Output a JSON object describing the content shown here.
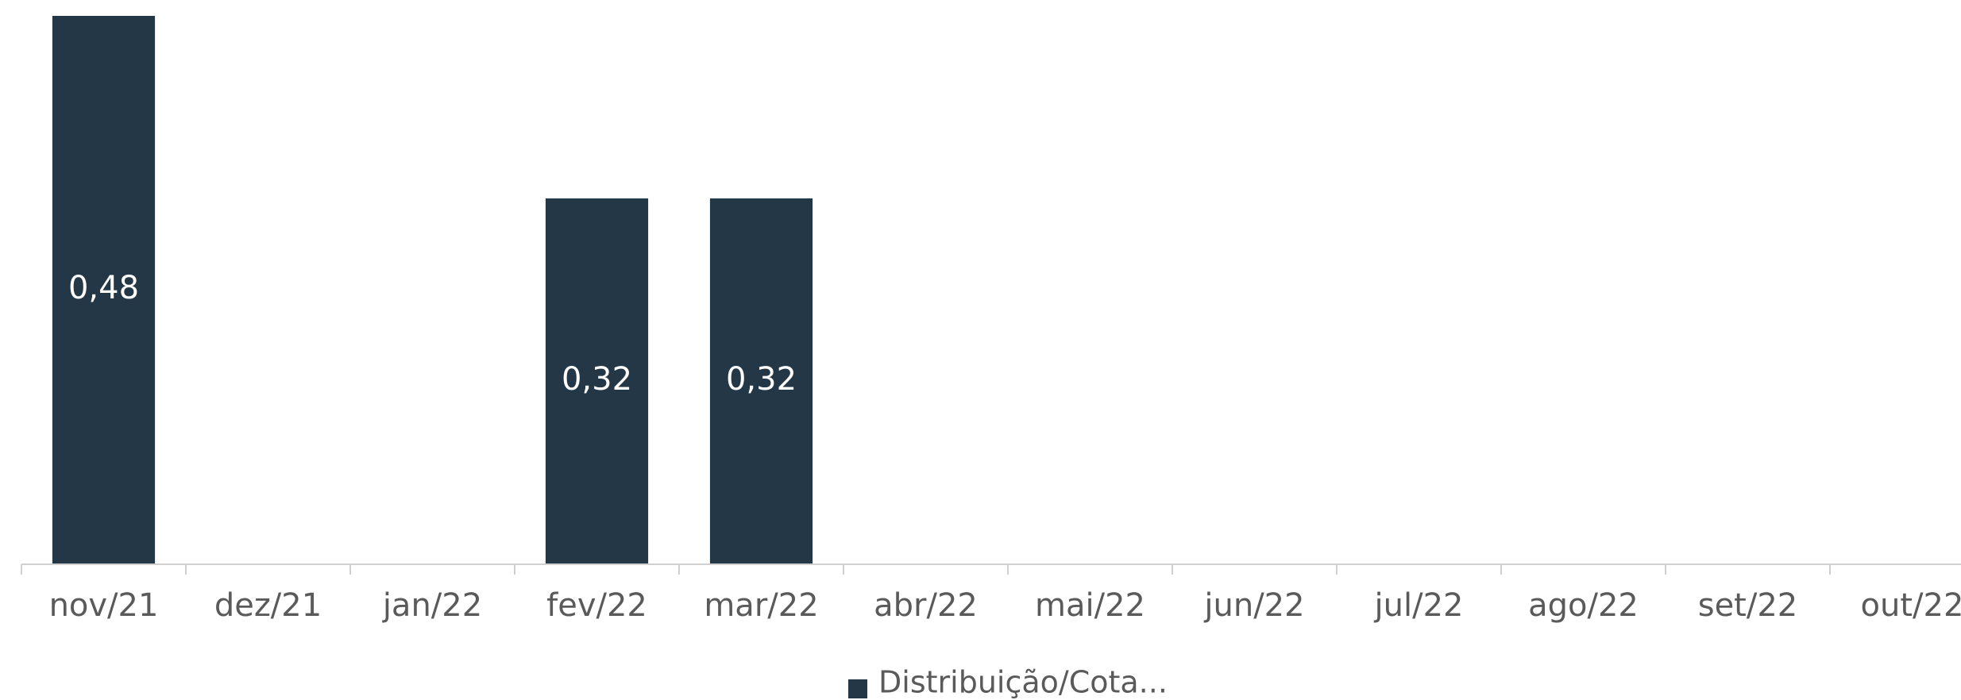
{
  "chart_data": {
    "type": "bar",
    "categories": [
      "nov/21",
      "dez/21",
      "jan/22",
      "fev/22",
      "mar/22",
      "abr/22",
      "mai/22",
      "jun/22",
      "jul/22",
      "ago/22",
      "set/22",
      "out/22"
    ],
    "series": [
      {
        "name": "Distribuição/Cota...",
        "color": "#243746",
        "values": [
          0.48,
          null,
          null,
          0.32,
          0.32,
          null,
          null,
          null,
          null,
          null,
          null,
          null
        ],
        "value_labels": [
          "0,48",
          null,
          null,
          "0,32",
          "0,32",
          null,
          null,
          null,
          null,
          null,
          null,
          null
        ]
      }
    ],
    "ylim": [
      0,
      0.48
    ],
    "legend": "bottom"
  }
}
